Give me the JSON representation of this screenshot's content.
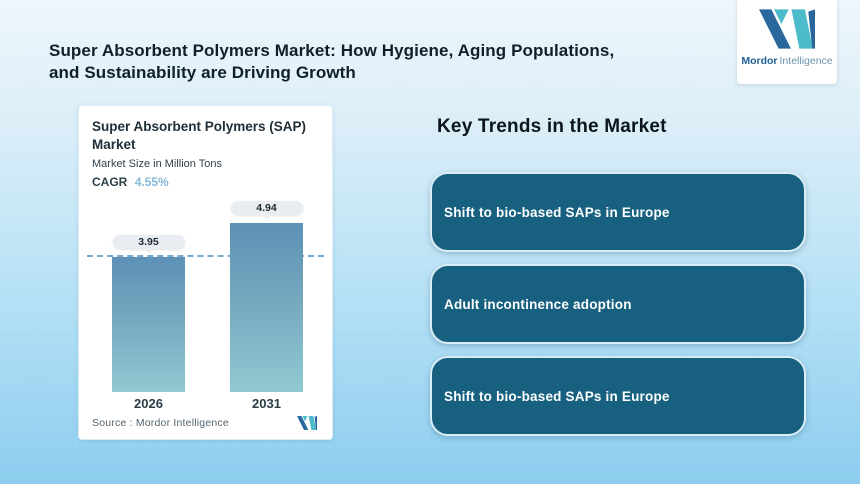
{
  "page": {
    "title_line1": "Super Absorbent Polymers Market: How Hygiene, Aging Populations,",
    "title_line2": "and Sustainability are Driving Growth"
  },
  "brand": {
    "logo_icon": "mordor-intelligence-m-monogram",
    "name_bold": "Mordor",
    "name_light": "Intelligence",
    "color_dark_blue": "#2a679c",
    "color_teal": "#4cbccb"
  },
  "chart_card": {
    "title": "Super Absorbent Polymers (SAP) Market",
    "subtitle": "Market Size in Million Tons",
    "cagr_label": "CAGR",
    "cagr_value": "4.55%",
    "source": "Source :  Mordor Intelligence"
  },
  "chart_data": {
    "type": "bar",
    "title": "Super Absorbent Polymers (SAP) Market",
    "subtitle": "Market Size in Million Tons",
    "cagr": "4.55%",
    "categories": [
      "2026",
      "2031"
    ],
    "values": [
      3.95,
      4.94
    ],
    "data_labels": [
      "3.95",
      "4.94"
    ],
    "ylim": [
      0,
      4.94
    ],
    "reference_line": {
      "value": 3.95,
      "style": "dashed",
      "color": "#5f9bc8"
    },
    "bar_gradient_top": "#5d91b6",
    "bar_gradient_bottom": "#90c9d2",
    "grid": false,
    "legend": false
  },
  "trends": {
    "heading": "Key Trends in the Market",
    "items": [
      "Shift to bio-based SAPs in Europe",
      "Adult incontinence adoption",
      "Shift to bio-based SAPs in Europe"
    ],
    "box_color": "#17607f"
  },
  "colors": {
    "background_top": "#eef6fb",
    "background_bottom": "#8ccdef",
    "title_text": "#10202a",
    "cagr_accent": "#86b8d9",
    "trend_box": "#17607f",
    "trend_box_border": "#d9edf6"
  }
}
